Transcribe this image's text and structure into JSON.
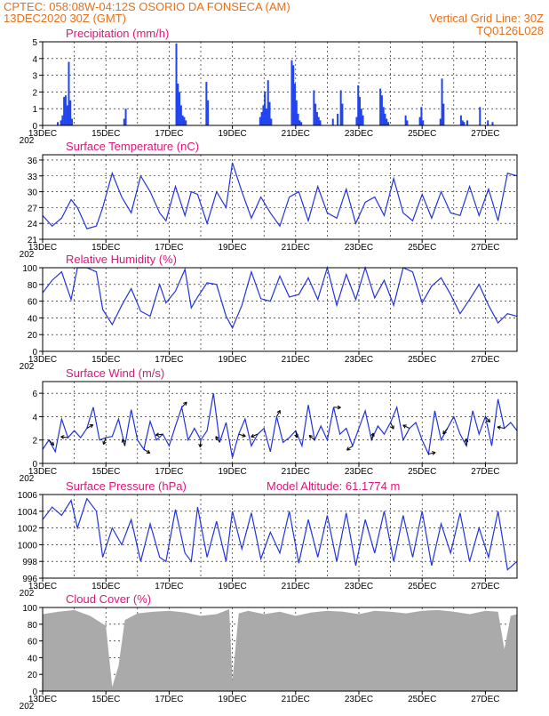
{
  "header": {
    "line1_left": "CPTEC:   058:08W-04:12S   OSORIO DA FONSECA (AM)",
    "line2_left": "13DEC2020 30Z (GMT)",
    "line2_right": "Vertical Grid Line: 30Z",
    "line3_right": "TQ0126L028"
  },
  "colors": {
    "title": "#e0147a",
    "header": "#e8701a",
    "series": "#2233dd",
    "bars": "#2244ee",
    "cloud": "#aaaaaa"
  },
  "x_axis": {
    "labels": [
      "13DEC",
      "15DEC",
      "17DEC",
      "19DEC",
      "21DEC",
      "23DEC",
      "25DEC",
      "27DEC"
    ],
    "label_day": [
      0,
      2,
      4,
      6,
      8,
      10,
      12,
      14
    ],
    "year_stub": "202",
    "days": 15
  },
  "chart_data": [
    {
      "type": "bar",
      "title": "Precipitation (mm/h)",
      "ylim": [
        0,
        5
      ],
      "yticks": [
        "0",
        "1",
        "2",
        "3",
        "4",
        "5"
      ],
      "series": [
        {
          "x": [
            0.45,
            0.55,
            0.6,
            0.65,
            0.7,
            0.75,
            0.8,
            0.85,
            0.9,
            2.55,
            2.6,
            4.2,
            4.25,
            4.3,
            4.35,
            4.4,
            4.45,
            4.5,
            5.15,
            5.2,
            6.85,
            6.9,
            6.95,
            7.0,
            7.05,
            7.1,
            7.15,
            7.2,
            7.85,
            7.9,
            7.95,
            8.0,
            8.05,
            8.1,
            8.15,
            8.55,
            8.6,
            8.65,
            8.7,
            8.75,
            9.15,
            9.3,
            9.4,
            9.45,
            9.9,
            9.95,
            10.0,
            10.05,
            10.1,
            10.65,
            10.7,
            10.75,
            10.8,
            10.85,
            10.9,
            11.45,
            11.5,
            11.9,
            11.95,
            12.0,
            12.55,
            12.6,
            12.65,
            13.2,
            13.25,
            13.3,
            13.4,
            13.8,
            14.05,
            14.2
          ],
          "values": [
            0.2,
            0.3,
            0.6,
            1.7,
            1.8,
            1.2,
            3.8,
            1.5,
            0.4,
            0.4,
            1.0,
            4.9,
            2.5,
            2.0,
            1.2,
            0.6,
            0.5,
            0.3,
            2.6,
            1.5,
            0.5,
            0.8,
            1.2,
            2.0,
            1.0,
            2.7,
            1.4,
            0.4,
            3.9,
            3.6,
            2.5,
            1.5,
            0.7,
            0.3,
            0.2,
            2.1,
            1.3,
            0.8,
            0.5,
            0.3,
            0.4,
            0.7,
            2.1,
            1.3,
            0.5,
            2.4,
            1.7,
            1.0,
            0.6,
            2.2,
            1.8,
            1.1,
            0.7,
            0.4,
            0.2,
            0.6,
            0.3,
            0.5,
            1.1,
            0.3,
            0.4,
            2.8,
            1.3,
            0.6,
            0.3,
            0.2,
            0.3,
            1.1,
            0.3,
            0.2
          ]
        }
      ]
    },
    {
      "type": "line",
      "title": "Surface Temperature (nC)",
      "ylim": [
        21,
        37
      ],
      "yticks": [
        "21",
        "24",
        "27",
        "30",
        "33",
        "36"
      ],
      "series": [
        {
          "x": [
            0,
            0.3,
            0.6,
            0.9,
            1.1,
            1.4,
            1.7,
            1.9,
            2.2,
            2.5,
            2.8,
            3.1,
            3.4,
            3.7,
            3.9,
            4.2,
            4.5,
            4.7,
            4.9,
            5.2,
            5.5,
            5.8,
            6.0,
            6.3,
            6.6,
            6.9,
            7.2,
            7.5,
            7.8,
            8.1,
            8.4,
            8.7,
            9.0,
            9.3,
            9.6,
            9.9,
            10.2,
            10.5,
            10.8,
            11.1,
            11.4,
            11.7,
            12.0,
            12.3,
            12.6,
            12.9,
            13.2,
            13.5,
            13.8,
            14.1,
            14.4,
            14.7,
            15.0
          ],
          "values": [
            25.5,
            23.5,
            25,
            28.5,
            27,
            23,
            23.5,
            27,
            33.5,
            29,
            26,
            33,
            30,
            26,
            24.5,
            31,
            25.5,
            30,
            29.5,
            24,
            30,
            27,
            35.5,
            30,
            25,
            29,
            26,
            23.5,
            29,
            30,
            24.5,
            31,
            26,
            25,
            30.5,
            24,
            28,
            29,
            25.5,
            32.5,
            26,
            24.5,
            29.5,
            25,
            30,
            26,
            25.5,
            31,
            25.5,
            30.5,
            24.5,
            33.5,
            33
          ]
        }
      ]
    },
    {
      "type": "line",
      "title": "Relative Humidity (%)",
      "ylim": [
        0,
        100
      ],
      "yticks": [
        "0",
        "20",
        "40",
        "60",
        "80",
        "100"
      ],
      "series": [
        {
          "x": [
            0,
            0.3,
            0.6,
            0.9,
            1.1,
            1.4,
            1.7,
            1.9,
            2.2,
            2.5,
            2.8,
            3.1,
            3.4,
            3.7,
            3.9,
            4.2,
            4.5,
            4.7,
            4.9,
            5.2,
            5.5,
            5.8,
            6.0,
            6.3,
            6.6,
            6.9,
            7.2,
            7.5,
            7.8,
            8.1,
            8.4,
            8.7,
            9.0,
            9.3,
            9.6,
            9.9,
            10.2,
            10.5,
            10.8,
            11.1,
            11.4,
            11.7,
            12.0,
            12.3,
            12.6,
            12.9,
            13.2,
            13.5,
            13.8,
            14.1,
            14.4,
            14.7,
            15.0
          ],
          "values": [
            70,
            85,
            95,
            62,
            100,
            100,
            95,
            50,
            32,
            55,
            75,
            48,
            42,
            80,
            58,
            72,
            98,
            52,
            65,
            82,
            80,
            42,
            28,
            55,
            95,
            63,
            60,
            90,
            65,
            68,
            88,
            62,
            100,
            55,
            92,
            62,
            100,
            64,
            85,
            55,
            100,
            95,
            58,
            78,
            88,
            68,
            45,
            62,
            80,
            55,
            34,
            45,
            42
          ]
        }
      ]
    },
    {
      "type": "line",
      "title": "Surface Wind (m/s)",
      "ylim": [
        0,
        7
      ],
      "yticks": [
        "0",
        "2",
        "4",
        "6"
      ],
      "series": [
        {
          "x": [
            0,
            0.2,
            0.4,
            0.6,
            0.8,
            1.0,
            1.2,
            1.4,
            1.6,
            1.8,
            2.0,
            2.2,
            2.4,
            2.6,
            2.8,
            3.0,
            3.2,
            3.4,
            3.6,
            3.8,
            4.0,
            4.2,
            4.4,
            4.6,
            4.8,
            5.0,
            5.2,
            5.4,
            5.6,
            5.8,
            6.0,
            6.2,
            6.4,
            6.6,
            6.8,
            7.0,
            7.2,
            7.4,
            7.6,
            7.8,
            8.0,
            8.2,
            8.4,
            8.6,
            8.8,
            9.0,
            9.2,
            9.4,
            9.6,
            9.8,
            10.0,
            10.2,
            10.4,
            10.6,
            10.8,
            11.0,
            11.2,
            11.4,
            11.6,
            11.8,
            12.0,
            12.2,
            12.4,
            12.6,
            12.8,
            13.0,
            13.2,
            13.4,
            13.6,
            13.8,
            14.0,
            14.2,
            14.4,
            14.6,
            14.8,
            15.0
          ],
          "values": [
            1.2,
            2.0,
            1.0,
            3.8,
            2.2,
            2.8,
            2.2,
            3.0,
            4.8,
            2.0,
            2.2,
            2.3,
            3.8,
            1.5,
            4.6,
            2.0,
            1.2,
            3.6,
            2.0,
            2.5,
            1.5,
            3.2,
            4.8,
            2.0,
            3.0,
            2.0,
            2.8,
            6.0,
            1.8,
            3.5,
            0.5,
            2.5,
            3.8,
            1.5,
            2.5,
            3.0,
            1.0,
            4.0,
            1.8,
            2.2,
            2.8,
            1.5,
            5.0,
            2.0,
            3.2,
            2.0,
            4.8,
            2.5,
            3.0,
            1.5,
            3.0,
            4.5,
            2.0,
            3.2,
            2.5,
            3.5,
            4.8,
            2.0,
            3.0,
            3.5,
            2.0,
            0.8,
            4.5,
            2.0,
            3.0,
            4.0,
            2.5,
            1.5,
            4.5,
            2.5,
            4.0,
            1.5,
            5.5,
            3.0,
            3.5,
            2.8
          ]
        }
      ]
    },
    {
      "type": "line",
      "title": "Surface Pressure (hPa)",
      "annotation": "Model Altitude: 61.1774 m",
      "ylim": [
        996,
        1006
      ],
      "yticks": [
        "996",
        "998",
        "1000",
        "1002",
        "1004",
        "1006"
      ],
      "series": [
        {
          "x": [
            0,
            0.3,
            0.6,
            0.9,
            1.1,
            1.4,
            1.7,
            1.9,
            2.2,
            2.5,
            2.8,
            3.1,
            3.4,
            3.7,
            3.9,
            4.2,
            4.5,
            4.7,
            4.9,
            5.2,
            5.5,
            5.8,
            6.0,
            6.3,
            6.6,
            6.9,
            7.2,
            7.5,
            7.8,
            8.1,
            8.4,
            8.7,
            9.0,
            9.3,
            9.6,
            9.9,
            10.2,
            10.5,
            10.8,
            11.1,
            11.4,
            11.7,
            12.0,
            12.3,
            12.6,
            12.9,
            13.2,
            13.5,
            13.8,
            14.1,
            14.4,
            14.7,
            15.0
          ],
          "values": [
            1003,
            1004.5,
            1003.5,
            1005.3,
            1002,
            1005.5,
            1004,
            998.5,
            1002,
            1000,
            1003,
            998,
            1002.5,
            998.5,
            998,
            1004.2,
            999,
            998,
            1004.5,
            998.5,
            1002.8,
            998,
            1004,
            999.5,
            1003.8,
            998.3,
            1001.5,
            999,
            1004,
            997.8,
            1003,
            998.5,
            1003.5,
            998,
            1003.8,
            997.5,
            1003,
            999,
            1004,
            998,
            1003.5,
            998.5,
            1004,
            997.5,
            1002.5,
            999,
            1003.8,
            998,
            1002,
            998.5,
            1004,
            997,
            998
          ]
        }
      ]
    },
    {
      "type": "area",
      "title": "Cloud Cover (%)",
      "ylim": [
        0,
        100
      ],
      "yticks": [
        "0",
        "20",
        "40",
        "60",
        "80",
        "100"
      ],
      "series": [
        {
          "x": [
            0,
            0.5,
            1.0,
            1.5,
            2.0,
            2.2,
            2.4,
            2.6,
            3.0,
            3.5,
            4.0,
            4.5,
            5.0,
            5.5,
            5.9,
            6.0,
            6.2,
            6.5,
            7.0,
            7.5,
            8.0,
            8.5,
            9.0,
            9.5,
            10.0,
            10.5,
            11.0,
            11.5,
            12.0,
            12.5,
            13.0,
            13.5,
            14.0,
            14.4,
            14.6,
            14.8,
            15.0
          ],
          "values": [
            92,
            95,
            97,
            90,
            78,
            5,
            30,
            85,
            93,
            95,
            96,
            94,
            90,
            92,
            98,
            12,
            93,
            96,
            92,
            95,
            90,
            94,
            96,
            95,
            92,
            96,
            95,
            93,
            96,
            97,
            95,
            92,
            96,
            95,
            50,
            90,
            92
          ]
        }
      ]
    }
  ]
}
